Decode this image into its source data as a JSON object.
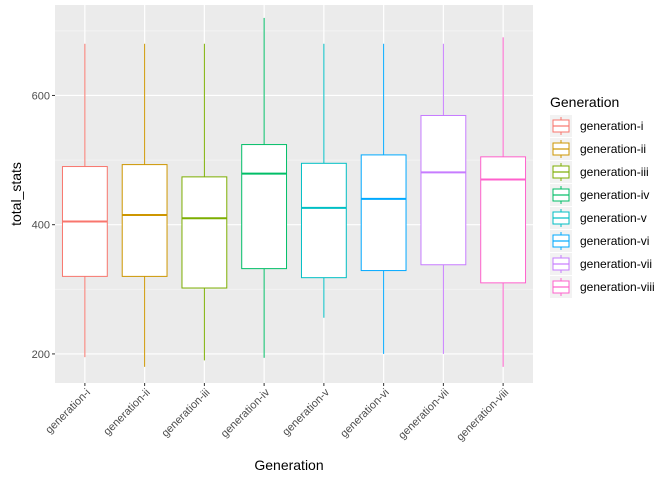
{
  "chart_data": {
    "type": "box",
    "xlabel": "Generation",
    "ylabel": "total_stats",
    "ylim": [
      155,
      740
    ],
    "yticks": [
      200,
      400,
      600
    ],
    "grid": true,
    "legend": {
      "title": "Generation",
      "position": "right"
    },
    "categories": [
      "generation-i",
      "generation-ii",
      "generation-iii",
      "generation-iv",
      "generation-v",
      "generation-vi",
      "generation-vii",
      "generation-viii"
    ],
    "colors": [
      "#F8766D",
      "#CD9600",
      "#7CAE00",
      "#00BE67",
      "#00BFC4",
      "#00A9FF",
      "#C77CFF",
      "#FF61CC"
    ],
    "boxes": [
      {
        "min": 195,
        "q1": 320,
        "median": 405,
        "q3": 490,
        "max": 680
      },
      {
        "min": 180,
        "q1": 320,
        "median": 415,
        "q3": 493,
        "max": 680
      },
      {
        "min": 190,
        "q1": 302,
        "median": 410,
        "q3": 474,
        "max": 680
      },
      {
        "min": 194,
        "q1": 332,
        "median": 479,
        "q3": 524,
        "max": 720
      },
      {
        "min": 256,
        "q1": 318,
        "median": 426,
        "q3": 495,
        "max": 680
      },
      {
        "min": 200,
        "q1": 329,
        "median": 440,
        "q3": 508,
        "max": 680
      },
      {
        "min": 200,
        "q1": 338,
        "median": 481,
        "q3": 569,
        "max": 680
      },
      {
        "min": 180,
        "q1": 310,
        "median": 470,
        "q3": 505,
        "max": 690
      }
    ]
  }
}
